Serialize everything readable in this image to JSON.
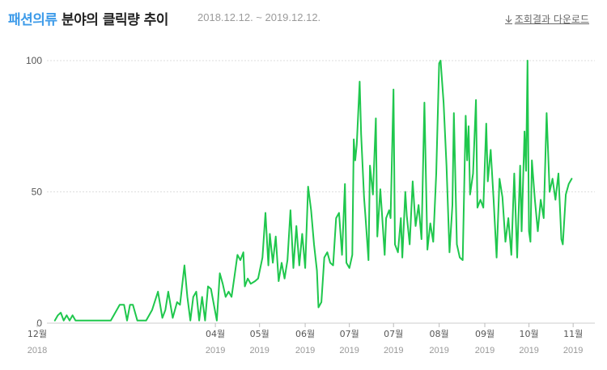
{
  "header": {
    "category": "패션의류",
    "title_rest": "분야의 클릭량 추이",
    "date_range": "2018.12.12. ~ 2019.12.12.",
    "download_label": "조회결과 다운로드",
    "download_icon": "download-icon"
  },
  "colors": {
    "line": "#1fc74d",
    "category": "#3d9be9",
    "grid": "#dddddd",
    "baseline": "#cccccc"
  },
  "chart_data": {
    "type": "line",
    "title": "패션의류 분야의 클릭량 추이",
    "xlabel": "",
    "ylabel": "",
    "ylim": [
      0,
      100
    ],
    "yticks": [
      "0",
      "50",
      "100"
    ],
    "xlim": [
      "2018-12-12",
      "2019-12-12"
    ],
    "xticks": [
      {
        "month": "12월",
        "year": "2018",
        "date": "2018-12-01"
      },
      {
        "month": "04월",
        "year": "2019",
        "date": "2019-04-01"
      },
      {
        "month": "05월",
        "year": "2019",
        "date": "2019-05-01"
      },
      {
        "month": "06월",
        "year": "2019",
        "date": "2019-06-01"
      },
      {
        "month": "07월",
        "year": "2019",
        "date": "2019-07-01"
      },
      {
        "month": "07월",
        "year": "2019",
        "date": "2019-07-31"
      },
      {
        "month": "08월",
        "year": "2019",
        "date": "2019-08-31"
      },
      {
        "month": "09월",
        "year": "2019",
        "date": "2019-10-01"
      },
      {
        "month": "10월",
        "year": "2019",
        "date": "2019-10-31"
      },
      {
        "month": "11월",
        "year": "2019",
        "date": "2019-11-30"
      }
    ],
    "grid": true,
    "legend": "none",
    "series": [
      {
        "points": [
          [
            "2018-12-13",
            1
          ],
          [
            "2018-12-15",
            3
          ],
          [
            "2018-12-17",
            4
          ],
          [
            "2018-12-19",
            1
          ],
          [
            "2018-12-21",
            3
          ],
          [
            "2018-12-23",
            1
          ],
          [
            "2018-12-25",
            3
          ],
          [
            "2018-12-27",
            1
          ],
          [
            "2018-12-31",
            1
          ],
          [
            "2019-01-04",
            1
          ],
          [
            "2019-01-08",
            1
          ],
          [
            "2019-01-12",
            1
          ],
          [
            "2019-01-16",
            1
          ],
          [
            "2019-01-20",
            1
          ],
          [
            "2019-01-26",
            7
          ],
          [
            "2019-01-29",
            7
          ],
          [
            "2019-01-31",
            1
          ],
          [
            "2019-02-02",
            7
          ],
          [
            "2019-02-04",
            7
          ],
          [
            "2019-02-07",
            1
          ],
          [
            "2019-02-10",
            1
          ],
          [
            "2019-02-13",
            1
          ],
          [
            "2019-02-17",
            5
          ],
          [
            "2019-02-21",
            12
          ],
          [
            "2019-02-24",
            2
          ],
          [
            "2019-02-26",
            5
          ],
          [
            "2019-02-28",
            12
          ],
          [
            "2019-03-03",
            2
          ],
          [
            "2019-03-06",
            8
          ],
          [
            "2019-03-08",
            7
          ],
          [
            "2019-03-11",
            22
          ],
          [
            "2019-03-13",
            10
          ],
          [
            "2019-03-15",
            1
          ],
          [
            "2019-03-17",
            10
          ],
          [
            "2019-03-19",
            12
          ],
          [
            "2019-03-21",
            1
          ],
          [
            "2019-03-23",
            10
          ],
          [
            "2019-03-25",
            1
          ],
          [
            "2019-03-27",
            14
          ],
          [
            "2019-03-29",
            13
          ],
          [
            "2019-04-02",
            1
          ],
          [
            "2019-04-04",
            19
          ],
          [
            "2019-04-06",
            15
          ],
          [
            "2019-04-08",
            10
          ],
          [
            "2019-04-10",
            12
          ],
          [
            "2019-04-12",
            10
          ],
          [
            "2019-04-14",
            18
          ],
          [
            "2019-04-16",
            26
          ],
          [
            "2019-04-18",
            24
          ],
          [
            "2019-04-20",
            27
          ],
          [
            "2019-04-21",
            14
          ],
          [
            "2019-04-23",
            17
          ],
          [
            "2019-04-25",
            15
          ],
          [
            "2019-04-28",
            16
          ],
          [
            "2019-04-30",
            17
          ],
          [
            "2019-05-03",
            25
          ],
          [
            "2019-05-05",
            42
          ],
          [
            "2019-05-07",
            22
          ],
          [
            "2019-05-08",
            34
          ],
          [
            "2019-05-10",
            23
          ],
          [
            "2019-05-12",
            33
          ],
          [
            "2019-05-14",
            16
          ],
          [
            "2019-05-16",
            23
          ],
          [
            "2019-05-18",
            17
          ],
          [
            "2019-05-20",
            24
          ],
          [
            "2019-05-22",
            43
          ],
          [
            "2019-05-24",
            21
          ],
          [
            "2019-05-26",
            37
          ],
          [
            "2019-05-28",
            22
          ],
          [
            "2019-05-30",
            34
          ],
          [
            "2019-06-01",
            21
          ],
          [
            "2019-06-03",
            52
          ],
          [
            "2019-06-05",
            43
          ],
          [
            "2019-06-07",
            30
          ],
          [
            "2019-06-09",
            20
          ],
          [
            "2019-06-10",
            6
          ],
          [
            "2019-06-12",
            8
          ],
          [
            "2019-06-14",
            25
          ],
          [
            "2019-06-16",
            27
          ],
          [
            "2019-06-18",
            23
          ],
          [
            "2019-06-20",
            22
          ],
          [
            "2019-06-22",
            40
          ],
          [
            "2019-06-24",
            42
          ],
          [
            "2019-06-26",
            26
          ],
          [
            "2019-06-28",
            53
          ],
          [
            "2019-06-29",
            23
          ],
          [
            "2019-07-01",
            21
          ],
          [
            "2019-07-03",
            26
          ],
          [
            "2019-07-04",
            70
          ],
          [
            "2019-07-05",
            62
          ],
          [
            "2019-07-06",
            68
          ],
          [
            "2019-07-08",
            92
          ],
          [
            "2019-07-09",
            72
          ],
          [
            "2019-07-11",
            48
          ],
          [
            "2019-07-12",
            40
          ],
          [
            "2019-07-14",
            24
          ],
          [
            "2019-07-15",
            60
          ],
          [
            "2019-07-17",
            49
          ],
          [
            "2019-07-19",
            78
          ],
          [
            "2019-07-20",
            33
          ],
          [
            "2019-07-22",
            51
          ],
          [
            "2019-07-23",
            43
          ],
          [
            "2019-07-25",
            26
          ],
          [
            "2019-07-26",
            40
          ],
          [
            "2019-07-28",
            43
          ],
          [
            "2019-07-29",
            40
          ],
          [
            "2019-07-31",
            89
          ],
          [
            "2019-08-01",
            30
          ],
          [
            "2019-08-03",
            27
          ],
          [
            "2019-08-05",
            40
          ],
          [
            "2019-08-06",
            25
          ],
          [
            "2019-08-08",
            50
          ],
          [
            "2019-08-09",
            41
          ],
          [
            "2019-08-11",
            30
          ],
          [
            "2019-08-13",
            54
          ],
          [
            "2019-08-15",
            37
          ],
          [
            "2019-08-17",
            45
          ],
          [
            "2019-08-19",
            32
          ],
          [
            "2019-08-21",
            84
          ],
          [
            "2019-08-23",
            28
          ],
          [
            "2019-08-25",
            38
          ],
          [
            "2019-08-27",
            31
          ],
          [
            "2019-08-29",
            57
          ],
          [
            "2019-08-31",
            99
          ],
          [
            "2019-09-01",
            100
          ],
          [
            "2019-09-03",
            84
          ],
          [
            "2019-09-05",
            60
          ],
          [
            "2019-09-07",
            27
          ],
          [
            "2019-09-09",
            45
          ],
          [
            "2019-09-10",
            80
          ],
          [
            "2019-09-12",
            30
          ],
          [
            "2019-09-14",
            25
          ],
          [
            "2019-09-16",
            24
          ],
          [
            "2019-09-18",
            79
          ],
          [
            "2019-09-19",
            62
          ],
          [
            "2019-09-20",
            75
          ],
          [
            "2019-09-21",
            49
          ],
          [
            "2019-09-23",
            57
          ],
          [
            "2019-09-25",
            85
          ],
          [
            "2019-09-26",
            44
          ],
          [
            "2019-09-28",
            47
          ],
          [
            "2019-09-30",
            44
          ],
          [
            "2019-10-02",
            76
          ],
          [
            "2019-10-03",
            54
          ],
          [
            "2019-10-05",
            66
          ],
          [
            "2019-10-07",
            47
          ],
          [
            "2019-10-09",
            25
          ],
          [
            "2019-10-11",
            55
          ],
          [
            "2019-10-13",
            48
          ],
          [
            "2019-10-15",
            31
          ],
          [
            "2019-10-17",
            40
          ],
          [
            "2019-10-19",
            26
          ],
          [
            "2019-10-21",
            57
          ],
          [
            "2019-10-23",
            25
          ],
          [
            "2019-10-25",
            60
          ],
          [
            "2019-10-26",
            35
          ],
          [
            "2019-10-28",
            73
          ],
          [
            "2019-10-29",
            58
          ],
          [
            "2019-10-30",
            100
          ],
          [
            "2019-10-31",
            35
          ],
          [
            "2019-11-01",
            31
          ],
          [
            "2019-11-02",
            62
          ],
          [
            "2019-11-04",
            47
          ],
          [
            "2019-11-06",
            35
          ],
          [
            "2019-11-08",
            47
          ],
          [
            "2019-11-10",
            40
          ],
          [
            "2019-11-12",
            80
          ],
          [
            "2019-11-14",
            50
          ],
          [
            "2019-11-16",
            55
          ],
          [
            "2019-11-18",
            47
          ],
          [
            "2019-11-20",
            57
          ],
          [
            "2019-11-22",
            32
          ],
          [
            "2019-11-23",
            30
          ],
          [
            "2019-11-25",
            49
          ],
          [
            "2019-11-27",
            53
          ],
          [
            "2019-11-29",
            55
          ]
        ]
      }
    ]
  }
}
